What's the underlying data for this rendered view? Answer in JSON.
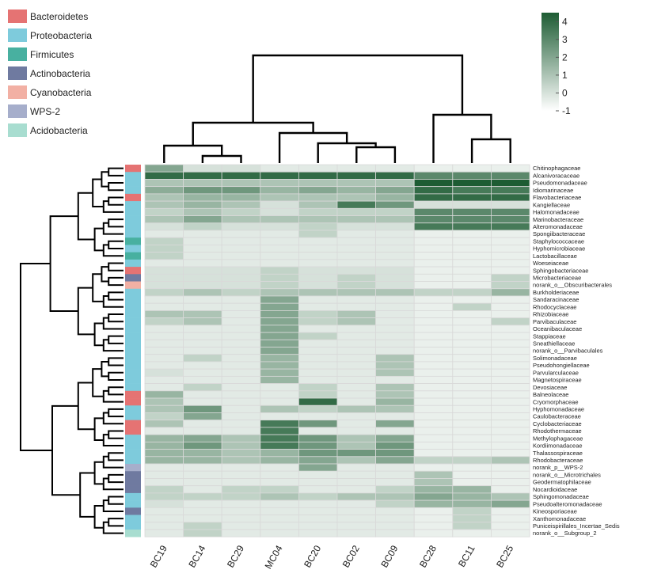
{
  "chart_data": {
    "type": "heatmap",
    "columns": [
      "BC19",
      "BC14",
      "BC29",
      "MC04",
      "BC20",
      "BC02",
      "BC09",
      "BC28",
      "BC11",
      "BC25"
    ],
    "rows": [
      "Chitinophagaceae",
      "Alcanivoracaceae",
      "Pseudomonadaceae",
      "Idiomarinaceae",
      "Flavobacteriaceae",
      "Kangiellaceae",
      "Halomonadaceae",
      "Marinobacteraceae",
      "Alteromonadaceae",
      "Spongiibacteraceae",
      "Staphylococcaceae",
      "Hyphomicrobiaceae",
      "Lactobacillaceae",
      "Woeseiaceae",
      "Sphingobacteriaceae",
      "Microbacteriaceae",
      "norank_o__Obscuribacterales",
      "Burkholderiaceae",
      "Sandaracinaceae",
      "Rhodocyclaceae",
      "Rhizobiaceae",
      "Parvibaculaceae",
      "Oceanibaculaceae",
      "Stappiaceae",
      "Sneathiellaceae",
      "norank_o__Parvibaculales",
      "Solimonadaceae",
      "Pseudohongiellaceae",
      "Parvularculaceae",
      "Magnetospiraceae",
      "Devosiaceae",
      "Balneolaceae",
      "Cryomorphaceae",
      "Hyphomonadaceae",
      "Caulobacteraceae",
      "Cyclobacteriaceae",
      "Rhodothermaceae",
      "Methylophagaceae",
      "Kordiimonadaceae",
      "Thalassospiraceae",
      "Rhodobacteraceae",
      "norank_p__WPS-2",
      "norank_o__Microtrichales",
      "Geodermatophilaceae",
      "Nocardioidaceae",
      "Sphingomonadaceae",
      "Pseudoalteromonadaceae",
      "Kineosporiaceae",
      "Xanthomonadaceae",
      "Puniceispirillales_Incertae_Sedis",
      "norank_o__Subgroup_2"
    ],
    "row_phylum": [
      "Bacteroidetes",
      "Proteobacteria",
      "Proteobacteria",
      "Proteobacteria",
      "Bacteroidetes",
      "Proteobacteria",
      "Proteobacteria",
      "Proteobacteria",
      "Proteobacteria",
      "Proteobacteria",
      "Firmicutes",
      "Proteobacteria",
      "Firmicutes",
      "Proteobacteria",
      "Bacteroidetes",
      "Actinobacteria",
      "Cyanobacteria",
      "Proteobacteria",
      "Proteobacteria",
      "Proteobacteria",
      "Proteobacteria",
      "Proteobacteria",
      "Proteobacteria",
      "Proteobacteria",
      "Proteobacteria",
      "Proteobacteria",
      "Proteobacteria",
      "Proteobacteria",
      "Proteobacteria",
      "Proteobacteria",
      "Proteobacteria",
      "Bacteroidetes",
      "Bacteroidetes",
      "Proteobacteria",
      "Proteobacteria",
      "Bacteroidetes",
      "Bacteroidetes",
      "Proteobacteria",
      "Proteobacteria",
      "Proteobacteria",
      "Proteobacteria",
      "WPS-2",
      "Actinobacteria",
      "Actinobacteria",
      "Actinobacteria",
      "Proteobacteria",
      "Proteobacteria",
      "Actinobacteria",
      "Proteobacteria",
      "Proteobacteria",
      "Acidobacteria"
    ],
    "values": [
      [
        2,
        0,
        0,
        -0.3,
        -0.3,
        -0.3,
        -0.3,
        -0.5,
        -0.5,
        -0.5
      ],
      [
        4,
        4,
        4,
        4,
        4,
        4,
        4,
        3,
        3,
        3
      ],
      [
        1,
        1,
        1,
        1,
        1,
        1,
        1,
        4.5,
        4.5,
        4.5
      ],
      [
        1.8,
        2.5,
        2.5,
        1.5,
        2,
        1.5,
        2,
        4,
        3.5,
        3.5
      ],
      [
        1,
        1.5,
        1.5,
        1,
        1,
        1,
        1.5,
        4,
        4,
        4
      ],
      [
        1,
        1.5,
        1,
        0,
        1,
        3.5,
        2.5,
        0,
        0,
        0
      ],
      [
        0.5,
        1,
        0.5,
        0,
        0.5,
        0.5,
        0.5,
        3,
        3,
        3
      ],
      [
        1,
        2,
        1,
        1,
        1,
        1,
        1,
        3,
        3,
        3
      ],
      [
        0,
        0.5,
        0,
        0,
        0.5,
        0,
        0,
        3.5,
        3.5,
        3.5
      ],
      [
        -0.3,
        -0.3,
        -0.3,
        -0.3,
        0.5,
        -0.3,
        -0.3,
        -0.5,
        -0.5,
        -0.5
      ],
      [
        0.5,
        -0.3,
        -0.3,
        -0.3,
        -0.3,
        -0.3,
        -0.3,
        -0.5,
        -0.5,
        -0.5
      ],
      [
        0.5,
        -0.3,
        -0.3,
        -0.3,
        -0.3,
        -0.3,
        -0.3,
        -0.5,
        -0.5,
        -0.5
      ],
      [
        0.5,
        -0.3,
        -0.3,
        -0.3,
        -0.3,
        -0.3,
        -0.3,
        -0.5,
        -0.5,
        -0.5
      ],
      [
        -0.3,
        -0.3,
        -0.3,
        -0.3,
        -0.3,
        -0.3,
        -0.3,
        -0.5,
        -0.5,
        -0.5
      ],
      [
        0,
        0,
        0,
        0.5,
        0,
        0,
        0,
        -0.5,
        -0.5,
        -0.5
      ],
      [
        0,
        0,
        0,
        0.5,
        0,
        0.5,
        0,
        -0.5,
        -0.5,
        0.5
      ],
      [
        0,
        0,
        0,
        0.5,
        0,
        0.5,
        0,
        -0.5,
        -0.5,
        0.5
      ],
      [
        0.5,
        1,
        0.5,
        1,
        1,
        1,
        1,
        0.5,
        0.5,
        1.5
      ],
      [
        -0.3,
        -0.3,
        -0.3,
        2,
        -0.3,
        -0.3,
        -0.3,
        -0.5,
        -0.5,
        -0.5
      ],
      [
        -0.3,
        -0.3,
        -0.3,
        2,
        -0.3,
        -0.3,
        -0.3,
        -0.5,
        0.5,
        -0.5
      ],
      [
        1,
        1,
        -0.3,
        2,
        0.5,
        1,
        -0.3,
        -0.5,
        -0.5,
        -0.5
      ],
      [
        0.5,
        1,
        -0.3,
        2,
        0.5,
        1,
        -0.3,
        -0.5,
        -0.5,
        0.5
      ],
      [
        -0.3,
        -0.3,
        -0.3,
        2,
        -0.3,
        -0.3,
        -0.3,
        -0.5,
        -0.5,
        -0.5
      ],
      [
        -0.3,
        -0.3,
        -0.3,
        2,
        0.5,
        -0.3,
        -0.3,
        -0.5,
        -0.5,
        -0.5
      ],
      [
        -0.3,
        -0.3,
        -0.3,
        2,
        -0.3,
        -0.3,
        -0.3,
        -0.5,
        -0.5,
        -0.5
      ],
      [
        -0.3,
        -0.3,
        -0.3,
        2,
        -0.3,
        -0.3,
        -0.3,
        -0.5,
        -0.5,
        -0.5
      ],
      [
        -0.3,
        0.5,
        -0.3,
        1.5,
        -0.3,
        -0.3,
        1,
        -0.5,
        -0.5,
        -0.5
      ],
      [
        -0.3,
        -0.3,
        -0.3,
        1.5,
        -0.3,
        -0.3,
        1,
        -0.5,
        -0.5,
        -0.5
      ],
      [
        0,
        -0.3,
        -0.3,
        1.5,
        -0.3,
        -0.3,
        1,
        -0.5,
        -0.5,
        -0.5
      ],
      [
        -0.3,
        -0.3,
        -0.3,
        1.5,
        -0.3,
        -0.3,
        -0.3,
        -0.5,
        -0.5,
        -0.5
      ],
      [
        -0.3,
        0.5,
        -0.3,
        -0.3,
        0.5,
        -0.3,
        1,
        -0.5,
        -0.5,
        -0.5
      ],
      [
        1.5,
        -0.3,
        -0.3,
        -0.3,
        0.5,
        -0.3,
        1,
        -0.5,
        -0.5,
        -0.5
      ],
      [
        1,
        -0.3,
        -0.3,
        -0.3,
        4,
        -0.3,
        1.5,
        -0.5,
        -0.5,
        -0.5
      ],
      [
        1,
        2.5,
        -0.3,
        1,
        0.5,
        1,
        1,
        -0.5,
        -0.5,
        -0.5
      ],
      [
        0.5,
        2,
        -0.3,
        -0.3,
        -0.3,
        -0.3,
        -0.3,
        -0.5,
        -0.5,
        -0.5
      ],
      [
        1,
        -0.3,
        -0.3,
        3.5,
        2.5,
        -0.3,
        2,
        -0.5,
        -0.5,
        -0.5
      ],
      [
        -0.3,
        -0.3,
        -0.3,
        3.5,
        -0.3,
        -0.3,
        -0.3,
        -0.5,
        -0.5,
        -0.5
      ],
      [
        1.5,
        2,
        1,
        3.5,
        2.5,
        1,
        2,
        -0.5,
        -0.5,
        -0.5
      ],
      [
        1.5,
        2.5,
        1,
        3.5,
        2.5,
        1,
        2.5,
        -0.5,
        -0.5,
        -0.5
      ],
      [
        1.5,
        1.5,
        1,
        1.5,
        2.5,
        2.5,
        2.5,
        -0.5,
        -0.5,
        -0.5
      ],
      [
        1.5,
        1.5,
        1,
        1.5,
        2,
        1,
        2,
        0.5,
        0.5,
        1
      ],
      [
        -0.3,
        -0.3,
        -0.3,
        -0.3,
        2,
        -0.3,
        -0.3,
        -0.5,
        -0.5,
        -0.5
      ],
      [
        -0.3,
        -0.3,
        -0.3,
        -0.3,
        -0.3,
        -0.3,
        -0.3,
        1,
        -0.5,
        -0.5
      ],
      [
        -0.3,
        -0.3,
        -0.3,
        -0.3,
        -0.3,
        -0.3,
        -0.3,
        1,
        -0.5,
        -0.5
      ],
      [
        0.5,
        -0.3,
        0.5,
        0.5,
        -0.3,
        -0.3,
        0.5,
        1.5,
        1.5,
        -0.5
      ],
      [
        0.5,
        0.5,
        0.5,
        1,
        0.5,
        1,
        1,
        2,
        1.5,
        1
      ],
      [
        0,
        -0.3,
        -0.3,
        -0.3,
        -0.3,
        -0.3,
        0.5,
        1.5,
        1.5,
        2
      ],
      [
        -0.3,
        -0.3,
        -0.3,
        -0.3,
        -0.3,
        -0.3,
        -0.3,
        -0.5,
        0.5,
        -0.5
      ],
      [
        -0.3,
        -0.3,
        -0.3,
        -0.3,
        -0.3,
        -0.3,
        -0.3,
        -0.5,
        0.5,
        -0.5
      ],
      [
        -0.3,
        0.5,
        -0.3,
        -0.3,
        -0.3,
        -0.3,
        -0.3,
        -0.5,
        0.5,
        -0.5
      ],
      [
        -0.3,
        0.5,
        -0.3,
        -0.3,
        -0.3,
        -0.3,
        -0.3,
        -0.5,
        -0.5,
        -0.5
      ]
    ],
    "color_scale": {
      "min": -1,
      "max": 4.5,
      "low_color": "#ffffff",
      "high_color": "#1d5c33",
      "ticks": [
        "4",
        "3",
        "2",
        "1",
        "0",
        "-1"
      ]
    },
    "legend": [
      {
        "label": "Bacteroidetes",
        "color": "#e57373"
      },
      {
        "label": "Proteobacteria",
        "color": "#7ecbdc"
      },
      {
        "label": "Firmicutes",
        "color": "#48b0a0"
      },
      {
        "label": "Actinobacteria",
        "color": "#6f7aa0"
      },
      {
        "label": "Cyanobacteria",
        "color": "#f2b0a4"
      },
      {
        "label": "WPS-2",
        "color": "#a6aecb"
      },
      {
        "label": "Acidobacteria",
        "color": "#a8ddd0"
      }
    ],
    "legend_position": "top-left",
    "colorbar_position": "top-right"
  }
}
